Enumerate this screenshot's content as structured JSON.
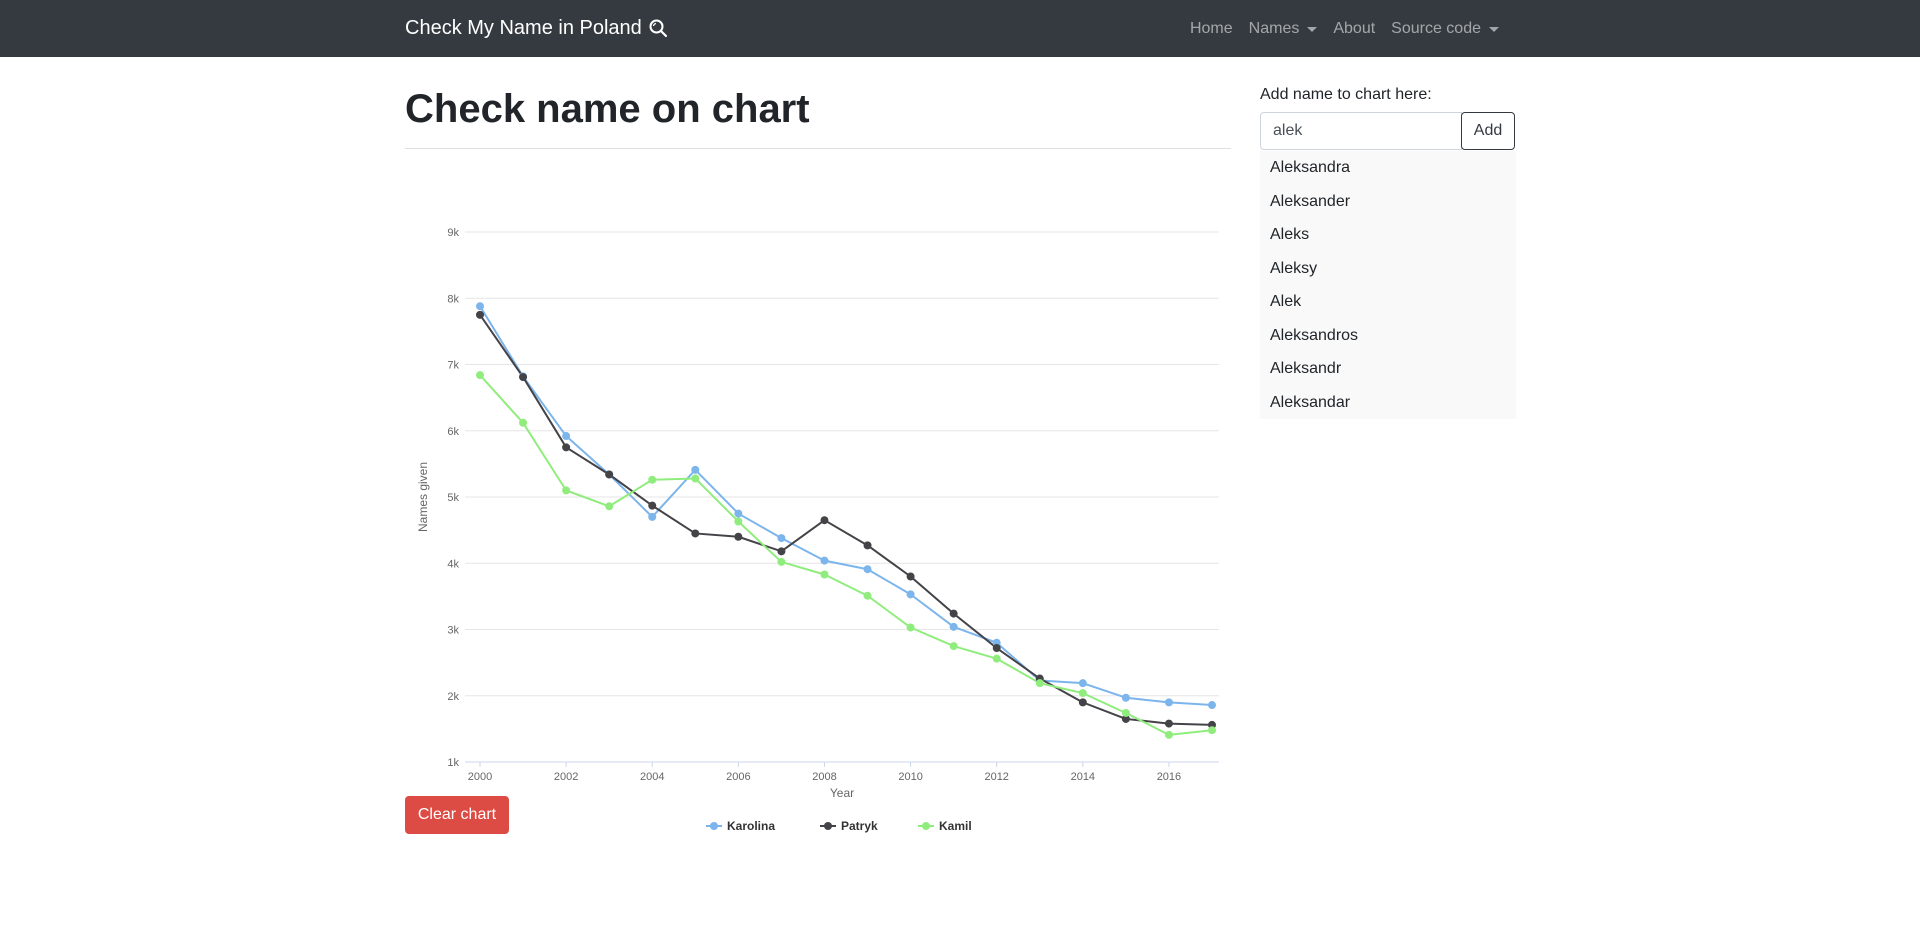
{
  "navbar": {
    "brand": "Check My Name in Poland",
    "brand_icon": "search-icon",
    "links": [
      {
        "label": "Home",
        "dropdown": false
      },
      {
        "label": "Names",
        "dropdown": true
      },
      {
        "label": "About",
        "dropdown": false
      },
      {
        "label": "Source code",
        "dropdown": true
      }
    ]
  },
  "page": {
    "title": "Check name on chart",
    "clear_button": "Clear chart"
  },
  "sidebar": {
    "label": "Add name to chart here:",
    "input_value": "alek",
    "add_button": "Add",
    "suggestions": [
      "Aleksandra",
      "Aleksander",
      "Aleks",
      "Aleksy",
      "Alek",
      "Aleksandros",
      "Aleksandr",
      "Aleksandar"
    ]
  },
  "colors": {
    "navbar_bg": "#343a40",
    "danger": "#dc4b44"
  },
  "chart_data": {
    "type": "line",
    "xlabel": "Year",
    "ylabel": "Names given",
    "x": [
      2000,
      2001,
      2002,
      2003,
      2004,
      2005,
      2006,
      2007,
      2008,
      2009,
      2010,
      2011,
      2012,
      2013,
      2014,
      2015,
      2016,
      2017
    ],
    "xticks": [
      2000,
      2002,
      2004,
      2006,
      2008,
      2010,
      2012,
      2014,
      2016
    ],
    "ylim": [
      1000,
      9000
    ],
    "yticks": [
      {
        "value": 1000,
        "label": "1k"
      },
      {
        "value": 2000,
        "label": "2k"
      },
      {
        "value": 3000,
        "label": "3k"
      },
      {
        "value": 4000,
        "label": "4k"
      },
      {
        "value": 5000,
        "label": "5k"
      },
      {
        "value": 6000,
        "label": "6k"
      },
      {
        "value": 7000,
        "label": "7k"
      },
      {
        "value": 8000,
        "label": "8k"
      },
      {
        "value": 9000,
        "label": "9k"
      }
    ],
    "grid": true,
    "legend": "bottom-center",
    "series": [
      {
        "name": "Karolina",
        "color": "#7cb5ec",
        "values": [
          7880,
          6820,
          5920,
          5340,
          4700,
          5410,
          4750,
          4380,
          4040,
          3910,
          3530,
          3040,
          2800,
          2230,
          2190,
          1970,
          1900,
          1860
        ]
      },
      {
        "name": "Patryk",
        "color": "#434348",
        "values": [
          7750,
          6810,
          5750,
          5340,
          4870,
          4450,
          4400,
          4180,
          4650,
          4270,
          3800,
          3240,
          2720,
          2260,
          1900,
          1650,
          1580,
          1560
        ]
      },
      {
        "name": "Kamil",
        "color": "#90ed7d",
        "values": [
          6840,
          6120,
          5100,
          4860,
          5260,
          5280,
          4630,
          4020,
          3830,
          3510,
          3030,
          2750,
          2560,
          2190,
          2040,
          1740,
          1410,
          1480
        ]
      }
    ]
  }
}
